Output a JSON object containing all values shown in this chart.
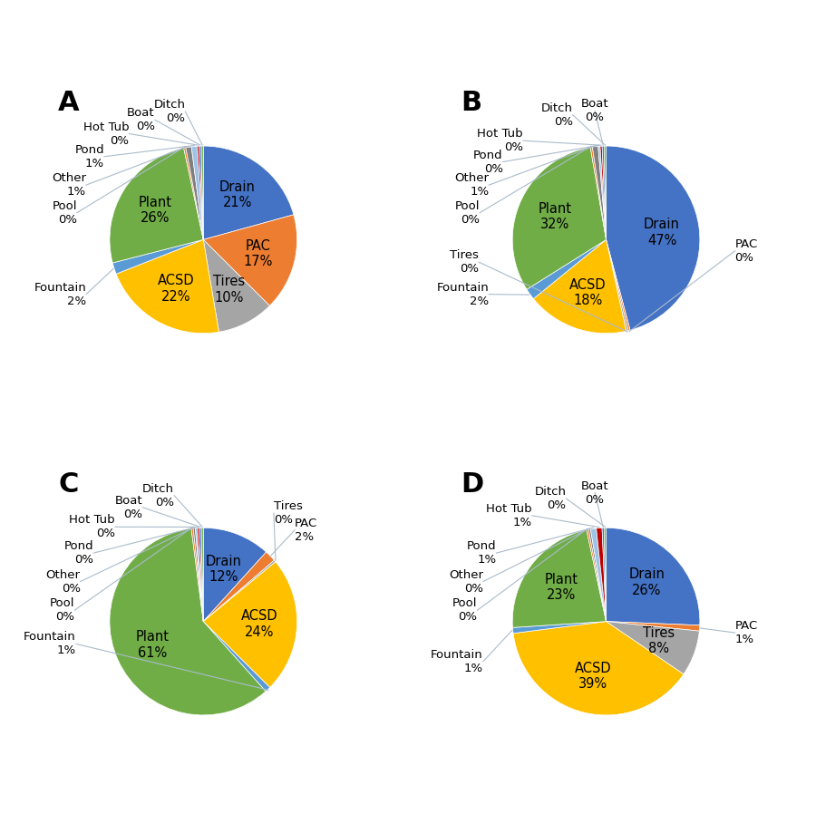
{
  "panels": [
    {
      "label": "A",
      "slices": [
        {
          "name": "Drain",
          "pct": 21,
          "color": "#4472C4"
        },
        {
          "name": "PAC",
          "pct": 17,
          "color": "#ED7D31"
        },
        {
          "name": "Tires",
          "pct": 10,
          "color": "#A5A5A5"
        },
        {
          "name": "ACSD",
          "pct": 22,
          "color": "#FFC000"
        },
        {
          "name": "Fountain",
          "pct": 2,
          "color": "#5B9BD5"
        },
        {
          "name": "Plant",
          "pct": 26,
          "color": "#70AD47"
        },
        {
          "name": "Pool",
          "pct": 0,
          "color": "#ED7D31"
        },
        {
          "name": "Other",
          "pct": 1,
          "color": "#808080"
        },
        {
          "name": "Pond",
          "pct": 1,
          "color": "#9DC3E6"
        },
        {
          "name": "Hot Tub",
          "pct": 0,
          "color": "#C00000"
        },
        {
          "name": "Boat",
          "pct": 0,
          "color": "#4472C4"
        },
        {
          "name": "Ditch",
          "pct": 0,
          "color": "#70AD47"
        }
      ],
      "inside_labels": [
        "Drain",
        "PAC",
        "Tires",
        "ACSD",
        "Plant"
      ],
      "outside_labels": [
        "Fountain",
        "Pool",
        "Other",
        "Pond",
        "Hot Tub",
        "Boat",
        "Ditch"
      ],
      "outside_label_angles": {
        "Fountain": -155,
        "Pool": 168,
        "Other": 155,
        "Pond": 140,
        "Hot Tub": 125,
        "Boat": 112,
        "Ditch": 98
      }
    },
    {
      "label": "B",
      "slices": [
        {
          "name": "Drain",
          "pct": 47,
          "color": "#4472C4"
        },
        {
          "name": "PAC",
          "pct": 0,
          "color": "#ED7D31"
        },
        {
          "name": "Tires",
          "pct": 0,
          "color": "#A5A5A5"
        },
        {
          "name": "ACSD",
          "pct": 18,
          "color": "#FFC000"
        },
        {
          "name": "Fountain",
          "pct": 2,
          "color": "#5B9BD5"
        },
        {
          "name": "Plant",
          "pct": 32,
          "color": "#70AD47"
        },
        {
          "name": "Pool",
          "pct": 0,
          "color": "#ED7D31"
        },
        {
          "name": "Other",
          "pct": 1,
          "color": "#808080"
        },
        {
          "name": "Pond",
          "pct": 0,
          "color": "#9DC3E6"
        },
        {
          "name": "Hot Tub",
          "pct": 0,
          "color": "#C00000"
        },
        {
          "name": "Boat",
          "pct": 0,
          "color": "#4472C4"
        },
        {
          "name": "Ditch",
          "pct": 0,
          "color": "#70AD47"
        }
      ],
      "inside_labels": [
        "Drain",
        "ACSD",
        "Plant"
      ],
      "outside_labels": [
        "Fountain",
        "Tires",
        "PAC",
        "Pool",
        "Other",
        "Pond",
        "Hot Tub",
        "Ditch",
        "Boat"
      ],
      "outside_label_angles": {
        "Fountain": -155,
        "Tires": -170,
        "PAC": -5,
        "Pool": 168,
        "Other": 155,
        "Pond": 143,
        "Hot Tub": 130,
        "Ditch": 105,
        "Boat": 95
      }
    },
    {
      "label": "C",
      "slices": [
        {
          "name": "Drain",
          "pct": 12,
          "color": "#4472C4"
        },
        {
          "name": "PAC",
          "pct": 2,
          "color": "#ED7D31"
        },
        {
          "name": "Tires",
          "pct": 0,
          "color": "#A5A5A5"
        },
        {
          "name": "ACSD",
          "pct": 24,
          "color": "#FFC000"
        },
        {
          "name": "Fountain",
          "pct": 1,
          "color": "#5B9BD5"
        },
        {
          "name": "Plant",
          "pct": 61,
          "color": "#70AD47"
        },
        {
          "name": "Pool",
          "pct": 0,
          "color": "#ED7D31"
        },
        {
          "name": "Other",
          "pct": 0,
          "color": "#808080"
        },
        {
          "name": "Pond",
          "pct": 0,
          "color": "#9DC3E6"
        },
        {
          "name": "Hot Tub",
          "pct": 0,
          "color": "#C00000"
        },
        {
          "name": "Boat",
          "pct": 0,
          "color": "#4472C4"
        },
        {
          "name": "Ditch",
          "pct": 0,
          "color": "#70AD47"
        }
      ],
      "inside_labels": [
        "Drain",
        "ACSD",
        "Plant"
      ],
      "outside_labels": [
        "PAC",
        "Tires",
        "Fountain",
        "Pool",
        "Other",
        "Pond",
        "Hot Tub",
        "Boat",
        "Ditch"
      ],
      "outside_label_angles": {
        "PAC": 45,
        "Tires": 57,
        "Fountain": -170,
        "Pool": 175,
        "Other": 162,
        "Pond": 148,
        "Hot Tub": 133,
        "Boat": 118,
        "Ditch": 103
      }
    },
    {
      "label": "D",
      "slices": [
        {
          "name": "Drain",
          "pct": 26,
          "color": "#4472C4"
        },
        {
          "name": "PAC",
          "pct": 1,
          "color": "#ED7D31"
        },
        {
          "name": "Tires",
          "pct": 8,
          "color": "#A5A5A5"
        },
        {
          "name": "ACSD",
          "pct": 39,
          "color": "#FFC000"
        },
        {
          "name": "Fountain",
          "pct": 1,
          "color": "#5B9BD5"
        },
        {
          "name": "Plant",
          "pct": 23,
          "color": "#70AD47"
        },
        {
          "name": "Pool",
          "pct": 0,
          "color": "#ED7D31"
        },
        {
          "name": "Other",
          "pct": 0,
          "color": "#808080"
        },
        {
          "name": "Pond",
          "pct": 1,
          "color": "#9DC3E6"
        },
        {
          "name": "Hot Tub",
          "pct": 1,
          "color": "#C00000"
        },
        {
          "name": "Boat",
          "pct": 0,
          "color": "#4472C4"
        },
        {
          "name": "Ditch",
          "pct": 0,
          "color": "#70AD47"
        }
      ],
      "inside_labels": [
        "Drain",
        "Tires",
        "ACSD",
        "Plant"
      ],
      "outside_labels": [
        "PAC",
        "Fountain",
        "Pool",
        "Other",
        "Pond",
        "Hot Tub",
        "Ditch",
        "Boat"
      ],
      "outside_label_angles": {
        "PAC": -5,
        "Fountain": -162,
        "Pool": 175,
        "Other": 162,
        "Pond": 148,
        "Hot Tub": 125,
        "Ditch": 108,
        "Boat": 95
      }
    }
  ],
  "inside_label_fontsize": 10.5,
  "outside_label_fontsize": 9.5,
  "panel_label_fontsize": 22,
  "min_display": 0.35
}
